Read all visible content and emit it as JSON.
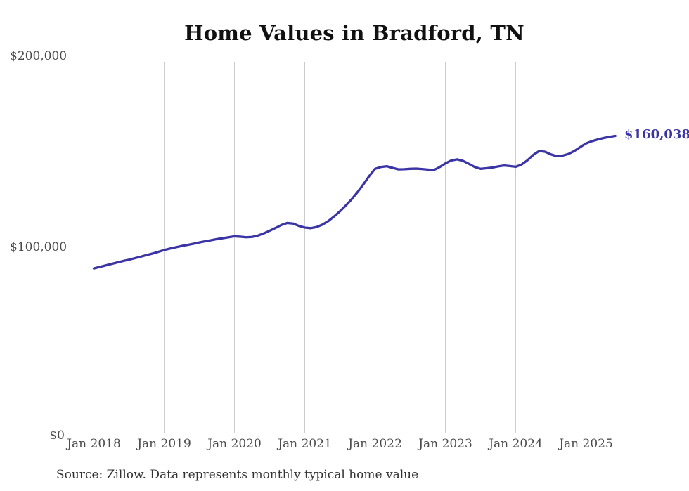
{
  "title": "Home Values in Bradford, TN",
  "source_note": "Source: Zillow. Data represents monthly typical home value",
  "end_label": "$160,038",
  "colors": {
    "line": "#3a34a4",
    "grid": "#cccccc",
    "title_text": "#111111",
    "axis_text": "#4a4a4a",
    "note_text": "#333333",
    "end_label_text": "#3a34a4"
  },
  "chart_data": {
    "type": "line",
    "title": "Home Values in Bradford, TN",
    "xlabel": "",
    "ylabel": "",
    "ylim": [
      0,
      200000
    ],
    "grid": "vertical-only",
    "legend": "none",
    "final_value": 160038,
    "final_value_label": "$160,038",
    "ytick_labels": [
      "$0",
      "$100,000",
      "$200,000"
    ],
    "ytick_values": [
      0,
      100000,
      200000
    ],
    "xtick_labels": [
      "Jan 2018",
      "Jan 2019",
      "Jan 2020",
      "Jan 2021",
      "Jan 2022",
      "Jan 2023",
      "Jan 2024",
      "Jan 2025"
    ],
    "x": [
      "2018-01",
      "2018-02",
      "2018-03",
      "2018-04",
      "2018-05",
      "2018-06",
      "2018-07",
      "2018-08",
      "2018-09",
      "2018-10",
      "2018-11",
      "2018-12",
      "2019-01",
      "2019-02",
      "2019-03",
      "2019-04",
      "2019-05",
      "2019-06",
      "2019-07",
      "2019-08",
      "2019-09",
      "2019-10",
      "2019-11",
      "2019-12",
      "2020-01",
      "2020-02",
      "2020-03",
      "2020-04",
      "2020-05",
      "2020-06",
      "2020-07",
      "2020-08",
      "2020-09",
      "2020-10",
      "2020-11",
      "2020-12",
      "2021-01",
      "2021-02",
      "2021-03",
      "2021-04",
      "2021-05",
      "2021-06",
      "2021-07",
      "2021-08",
      "2021-09",
      "2021-10",
      "2021-11",
      "2021-12",
      "2022-01",
      "2022-02",
      "2022-03",
      "2022-04",
      "2022-05",
      "2022-06",
      "2022-07",
      "2022-08",
      "2022-09",
      "2022-10",
      "2022-11",
      "2022-12",
      "2023-01",
      "2023-02",
      "2023-03",
      "2023-04",
      "2023-05",
      "2023-06",
      "2023-07",
      "2023-08",
      "2023-09",
      "2023-10",
      "2023-11",
      "2023-12",
      "2024-01",
      "2024-02",
      "2024-03",
      "2024-04",
      "2024-05",
      "2024-06",
      "2024-07",
      "2024-08",
      "2024-09",
      "2024-10",
      "2024-11",
      "2024-12",
      "2025-01",
      "2025-02",
      "2025-03",
      "2025-04",
      "2025-05",
      "2025-06"
    ],
    "values": [
      88600,
      89400,
      90200,
      91000,
      91800,
      92600,
      93300,
      94100,
      94900,
      95800,
      96600,
      97500,
      98500,
      99300,
      100000,
      100700,
      101300,
      101900,
      102600,
      103200,
      103800,
      104400,
      104900,
      105400,
      105900,
      105700,
      105400,
      105600,
      106300,
      107500,
      108900,
      110400,
      112000,
      113100,
      112800,
      111500,
      110600,
      110300,
      110900,
      112200,
      114100,
      116600,
      119400,
      122500,
      125900,
      129700,
      133900,
      138400,
      142300,
      143300,
      143700,
      142800,
      142000,
      142100,
      142300,
      142400,
      142200,
      141900,
      141600,
      143200,
      145200,
      146800,
      147400,
      146600,
      145000,
      143300,
      142300,
      142600,
      143000,
      143600,
      144100,
      143800,
      143400,
      144600,
      146900,
      149800,
      151900,
      151500,
      150100,
      149100,
      149400,
      150300,
      151900,
      154000,
      156000,
      157200,
      158100,
      158900,
      159500,
      160038
    ]
  }
}
